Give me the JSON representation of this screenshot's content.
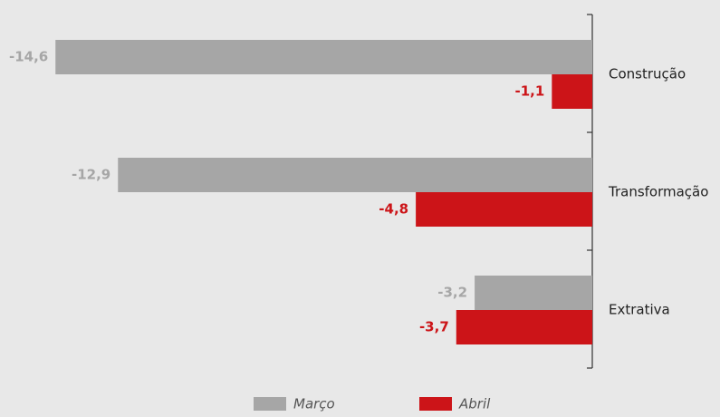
{
  "chart_data": {
    "type": "barh",
    "categories": [
      "Construção",
      "Transformação",
      "Extrativa"
    ],
    "series": [
      {
        "name": "Março",
        "color": "#a6a6a6",
        "label_color": "#a6a6a6",
        "values": [
          -14.6,
          -12.9,
          -3.2
        ],
        "value_labels": [
          "-14,6",
          "-12,9",
          "-3,2"
        ]
      },
      {
        "name": "Abril",
        "color": "#cc1418",
        "label_color": "#cc1418",
        "values": [
          -1.1,
          -4.8,
          -3.7
        ],
        "value_labels": [
          "-1,1",
          "-4,8",
          "-3,7"
        ]
      }
    ],
    "xlim": [
      -15,
      0
    ]
  }
}
